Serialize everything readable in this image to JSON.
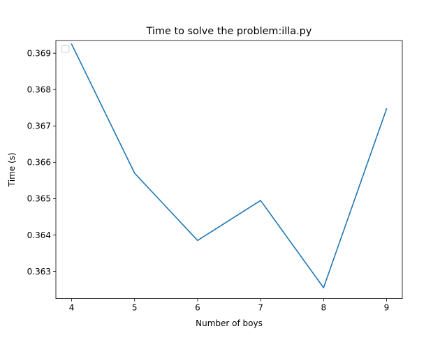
{
  "chart_data": {
    "type": "line",
    "title": "Time to solve the problem:illa.py",
    "xlabel": "Number of boys",
    "ylabel": "Time (s)",
    "x": [
      4,
      5,
      6,
      7,
      8,
      9
    ],
    "series": [
      {
        "values": [
          0.36925,
          0.3657,
          0.36385,
          0.36495,
          0.36255,
          0.36747
        ],
        "color": "#1f77b4"
      }
    ],
    "xlim": [
      3.75,
      9.25
    ],
    "ylim": [
      0.36225,
      0.36935
    ],
    "x_ticks": [
      "4",
      "5",
      "6",
      "7",
      "8",
      "9"
    ],
    "y_ticks": [
      "0.363",
      "0.364",
      "0.365",
      "0.366",
      "0.367",
      "0.368",
      "0.369"
    ],
    "grid": false,
    "legend": {
      "placement": "top-left",
      "entries": []
    }
  }
}
